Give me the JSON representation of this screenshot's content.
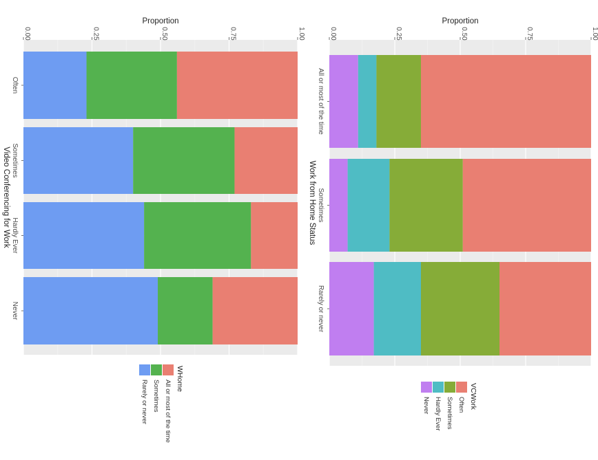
{
  "chart_data": [
    {
      "type": "bar",
      "stacked": true,
      "orientation": "horizontal",
      "rotation": "rotated 90 degrees clockwise",
      "title": "",
      "xlabel": "Video Conferencing for Work",
      "ylabel": "Proportion",
      "ylim": [
        0,
        1
      ],
      "y_ticks": [
        "0.00",
        "0.25",
        "0.50",
        "0.75",
        "1.00"
      ],
      "categories": [
        "Often",
        "Sometimes",
        "Hardly Ever",
        "Never"
      ],
      "legend": {
        "title": "WHome",
        "position": "bottom"
      },
      "series": [
        {
          "name": "Rarely or never",
          "color": "#6e9cf2",
          "values": [
            0.23,
            0.4,
            0.44,
            0.49
          ]
        },
        {
          "name": "Sometimes",
          "color": "#54b24f",
          "values": [
            0.33,
            0.37,
            0.39,
            0.2
          ]
        },
        {
          "name": "All or most of the time",
          "color": "#e97f72",
          "values": [
            0.44,
            0.23,
            0.17,
            0.31
          ]
        }
      ]
    },
    {
      "type": "bar",
      "stacked": true,
      "orientation": "horizontal",
      "rotation": "rotated 90 degrees clockwise",
      "title": "",
      "xlabel": "Work from Home Status",
      "ylabel": "Proportion",
      "ylim": [
        0,
        1
      ],
      "y_ticks": [
        "0.00",
        "0.25",
        "0.50",
        "0.75",
        "1.00"
      ],
      "categories": [
        "All or most of the time",
        "Sometimes",
        "Rarely or never"
      ],
      "legend": {
        "title": "VCWork",
        "position": "bottom"
      },
      "series": [
        {
          "name": "Never",
          "color": "#c07ef0",
          "values": [
            0.11,
            0.07,
            0.17
          ]
        },
        {
          "name": "Hardly Ever",
          "color": "#4fbcc4",
          "values": [
            0.07,
            0.16,
            0.18
          ]
        },
        {
          "name": "Sometimes",
          "color": "#86ac38",
          "values": [
            0.17,
            0.28,
            0.3
          ]
        },
        {
          "name": "Often",
          "color": "#e97f72",
          "values": [
            0.65,
            0.49,
            0.35
          ]
        }
      ]
    }
  ]
}
